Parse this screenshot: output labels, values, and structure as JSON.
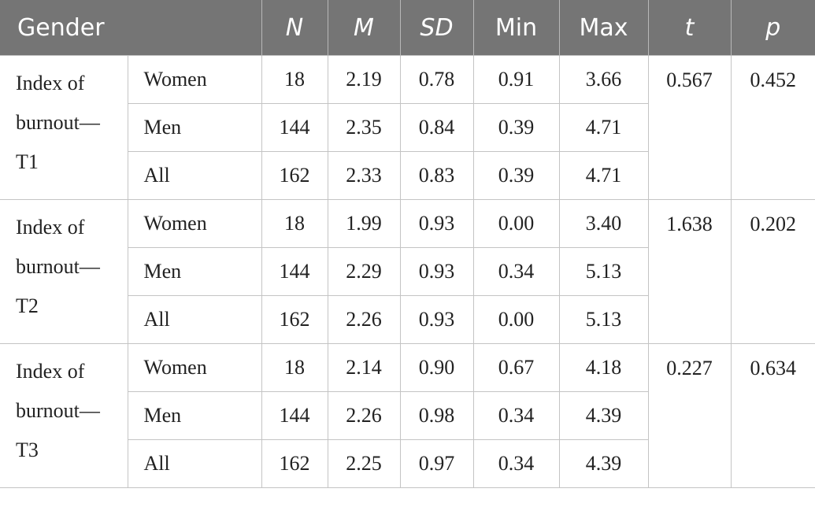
{
  "headers": [
    "Gender",
    "N",
    "M",
    "SD",
    "Min",
    "Max",
    "t",
    "p"
  ],
  "groups": [
    {
      "label_lines": [
        "Index of",
        "burnout—",
        "T1"
      ],
      "t": "0.567",
      "p": "0.452",
      "rows": [
        {
          "gender": "Women",
          "N": "18",
          "M": "2.19",
          "SD": "0.78",
          "Min": "0.91",
          "Max": "3.66"
        },
        {
          "gender": "Men",
          "N": "144",
          "M": "2.35",
          "SD": "0.84",
          "Min": "0.39",
          "Max": "4.71"
        },
        {
          "gender": "All",
          "N": "162",
          "M": "2.33",
          "SD": "0.83",
          "Min": "0.39",
          "Max": "4.71"
        }
      ]
    },
    {
      "label_lines": [
        "Index of",
        "burnout—",
        "T2"
      ],
      "t": "1.638",
      "p": "0.202",
      "rows": [
        {
          "gender": "Women",
          "N": "18",
          "M": "1.99",
          "SD": "0.93",
          "Min": "0.00",
          "Max": "3.40"
        },
        {
          "gender": "Men",
          "N": "144",
          "M": "2.29",
          "SD": "0.93",
          "Min": "0.34",
          "Max": "5.13"
        },
        {
          "gender": "All",
          "N": "162",
          "M": "2.26",
          "SD": "0.93",
          "Min": "0.00",
          "Max": "5.13"
        }
      ]
    },
    {
      "label_lines": [
        "Index of",
        "burnout—",
        "T3"
      ],
      "t": "0.227",
      "p": "0.634",
      "rows": [
        {
          "gender": "Women",
          "N": "18",
          "M": "2.14",
          "SD": "0.90",
          "Min": "0.67",
          "Max": "4.18"
        },
        {
          "gender": "Men",
          "N": "144",
          "M": "2.26",
          "SD": "0.98",
          "Min": "0.34",
          "Max": "4.39"
        },
        {
          "gender": "All",
          "N": "162",
          "M": "2.25",
          "SD": "0.97",
          "Min": "0.34",
          "Max": "4.39"
        }
      ]
    }
  ]
}
